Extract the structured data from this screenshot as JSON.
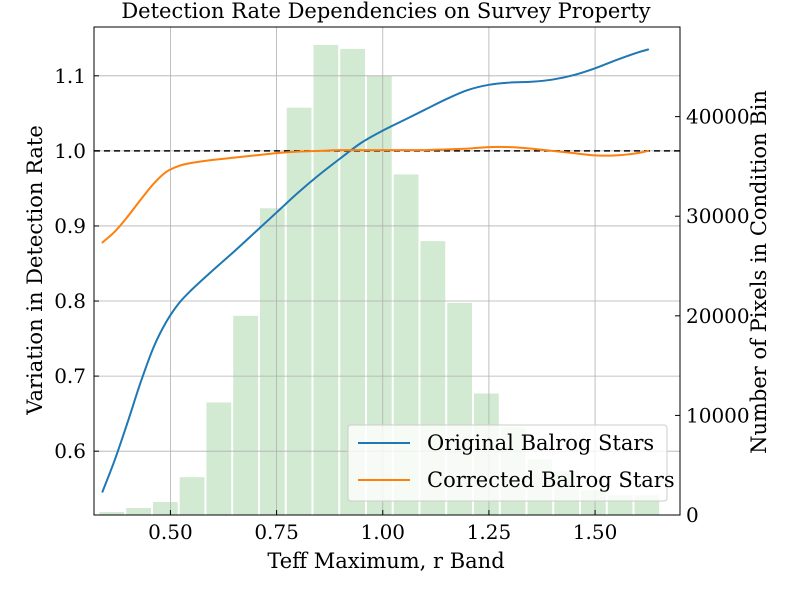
{
  "chart_data": {
    "type": "line",
    "title": "Detection Rate Dependencies on Survey Property",
    "xlabel": "Teff Maximum, r Band",
    "ylabel_left": "Variation in Detection Rate",
    "ylabel_right": "Number of Pixels in Condition Bin",
    "xlim": [
      0.32,
      1.7
    ],
    "ylim_left": [
      0.515,
      1.165
    ],
    "ylim_right": [
      0,
      49000
    ],
    "x_ticks": [
      0.5,
      0.75,
      1.0,
      1.25,
      1.5
    ],
    "x_tick_labels": [
      "0.50",
      "0.75",
      "1.00",
      "1.25",
      "1.50"
    ],
    "y_left_ticks": [
      0.6,
      0.7,
      0.8,
      0.9,
      1.0,
      1.1
    ],
    "y_left_tick_labels": [
      "0.6",
      "0.7",
      "0.8",
      "0.9",
      "1.0",
      "1.1"
    ],
    "y_right_ticks": [
      0,
      10000,
      20000,
      30000,
      40000
    ],
    "y_right_tick_labels": [
      "0",
      "10000",
      "20000",
      "30000",
      "40000"
    ],
    "grid": true,
    "reference_line": 1.0,
    "legend_position": "lower-right",
    "histogram": {
      "color": "#2ca02c",
      "bin_width": 0.063,
      "centers": [
        0.362,
        0.425,
        0.488,
        0.551,
        0.614,
        0.677,
        0.74,
        0.803,
        0.866,
        0.929,
        0.992,
        1.055,
        1.118,
        1.181,
        1.244,
        1.307,
        1.37,
        1.433,
        1.496,
        1.559,
        1.622
      ],
      "counts": [
        300,
        700,
        1300,
        3800,
        11300,
        20000,
        30800,
        40900,
        47200,
        46800,
        44100,
        34200,
        27500,
        21300,
        12200,
        8800,
        5600,
        4400,
        2500,
        2000,
        2000
      ]
    },
    "series": [
      {
        "name": "Original Balrog Stars",
        "color": "#1f77b4",
        "x": [
          0.34,
          0.37,
          0.4,
          0.43,
          0.46,
          0.49,
          0.52,
          0.55,
          0.6,
          0.65,
          0.7,
          0.75,
          0.8,
          0.85,
          0.9,
          0.95,
          1.0,
          1.05,
          1.1,
          1.15,
          1.2,
          1.25,
          1.3,
          1.35,
          1.4,
          1.45,
          1.5,
          1.55,
          1.6,
          1.625
        ],
        "y": [
          0.546,
          0.59,
          0.64,
          0.692,
          0.738,
          0.772,
          0.797,
          0.815,
          0.841,
          0.866,
          0.892,
          0.918,
          0.944,
          0.968,
          0.99,
          1.011,
          1.027,
          1.041,
          1.055,
          1.069,
          1.081,
          1.088,
          1.091,
          1.092,
          1.095,
          1.101,
          1.11,
          1.121,
          1.131,
          1.135
        ]
      },
      {
        "name": "Corrected Balrog Stars",
        "color": "#ff7f0e",
        "x": [
          0.34,
          0.37,
          0.4,
          0.43,
          0.46,
          0.49,
          0.52,
          0.55,
          0.6,
          0.65,
          0.7,
          0.75,
          0.8,
          0.85,
          0.9,
          0.95,
          1.0,
          1.05,
          1.1,
          1.15,
          1.2,
          1.25,
          1.3,
          1.35,
          1.4,
          1.45,
          1.5,
          1.55,
          1.6,
          1.625
        ],
        "y": [
          0.878,
          0.893,
          0.913,
          0.935,
          0.956,
          0.972,
          0.98,
          0.984,
          0.988,
          0.991,
          0.994,
          0.997,
          0.999,
          1.0,
          1.001,
          1.001,
          1.001,
          1.001,
          1.001,
          1.002,
          1.003,
          1.005,
          1.005,
          1.003,
          1.0,
          0.997,
          0.994,
          0.994,
          0.997,
          1.0
        ]
      }
    ]
  }
}
